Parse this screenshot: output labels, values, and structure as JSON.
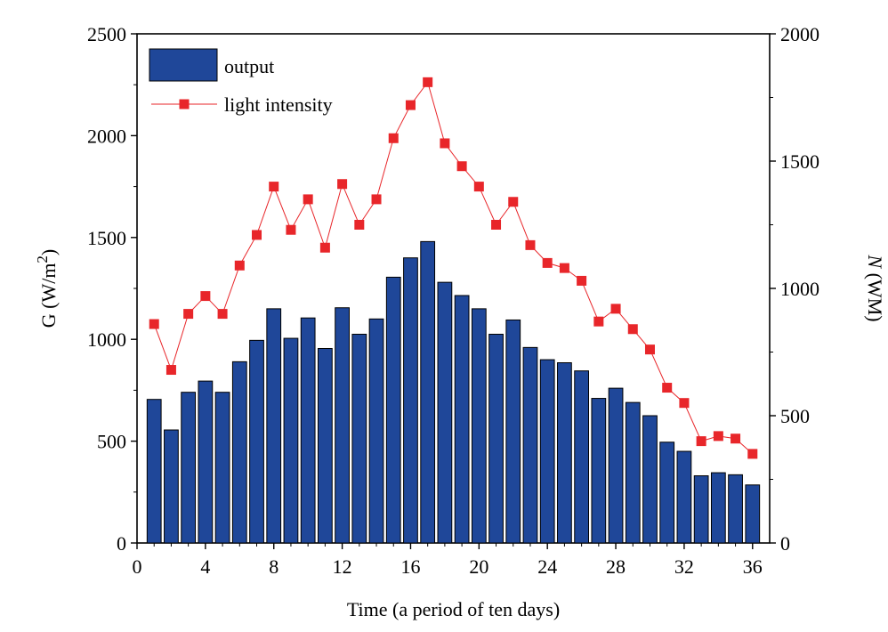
{
  "chart_data": {
    "type": "bar+line",
    "x": [
      1,
      2,
      3,
      4,
      5,
      6,
      7,
      8,
      9,
      10,
      11,
      12,
      13,
      14,
      15,
      16,
      17,
      18,
      19,
      20,
      21,
      22,
      23,
      24,
      25,
      26,
      27,
      28,
      29,
      30,
      31,
      32,
      33,
      34,
      35,
      36
    ],
    "series": [
      {
        "name": "output",
        "type": "bar",
        "axis": "left",
        "color": "#1f4799",
        "values": [
          705,
          555,
          740,
          795,
          740,
          890,
          995,
          1150,
          1005,
          1105,
          955,
          1155,
          1025,
          1100,
          1305,
          1400,
          1480,
          1280,
          1215,
          1150,
          1025,
          1095,
          960,
          900,
          885,
          845,
          710,
          760,
          690,
          625,
          495,
          450,
          330,
          345,
          335,
          285
        ]
      },
      {
        "name": "light intensity",
        "type": "line",
        "axis": "right",
        "color": "#e8262a",
        "values": [
          860,
          680,
          900,
          970,
          900,
          1090,
          1210,
          1400,
          1230,
          1350,
          1160,
          1410,
          1250,
          1350,
          1590,
          1720,
          1810,
          1570,
          1480,
          1400,
          1250,
          1340,
          1170,
          1100,
          1080,
          1030,
          870,
          920,
          840,
          760,
          610,
          550,
          400,
          420,
          410,
          350
        ]
      }
    ],
    "xlabel": "Time (a period of ten days)",
    "ylabel": "G (W/m",
    "ylabel_sup": "2",
    "ylabel_tail": ")",
    "y2label_italic": "N",
    "y2label_rest": " (WM)",
    "xlim": [
      0,
      37
    ],
    "ylim": [
      0,
      2500
    ],
    "y2lim": [
      0,
      2000
    ],
    "xticks": [
      0,
      4,
      8,
      12,
      16,
      20,
      24,
      28,
      32,
      36
    ],
    "yticks": [
      0,
      500,
      1000,
      1500,
      2000,
      2500
    ],
    "y2ticks": [
      0,
      500,
      1000,
      1500,
      2000
    ],
    "legend": {
      "position": "top-left",
      "entries": [
        "output",
        "light intensity"
      ]
    },
    "grid": false
  }
}
